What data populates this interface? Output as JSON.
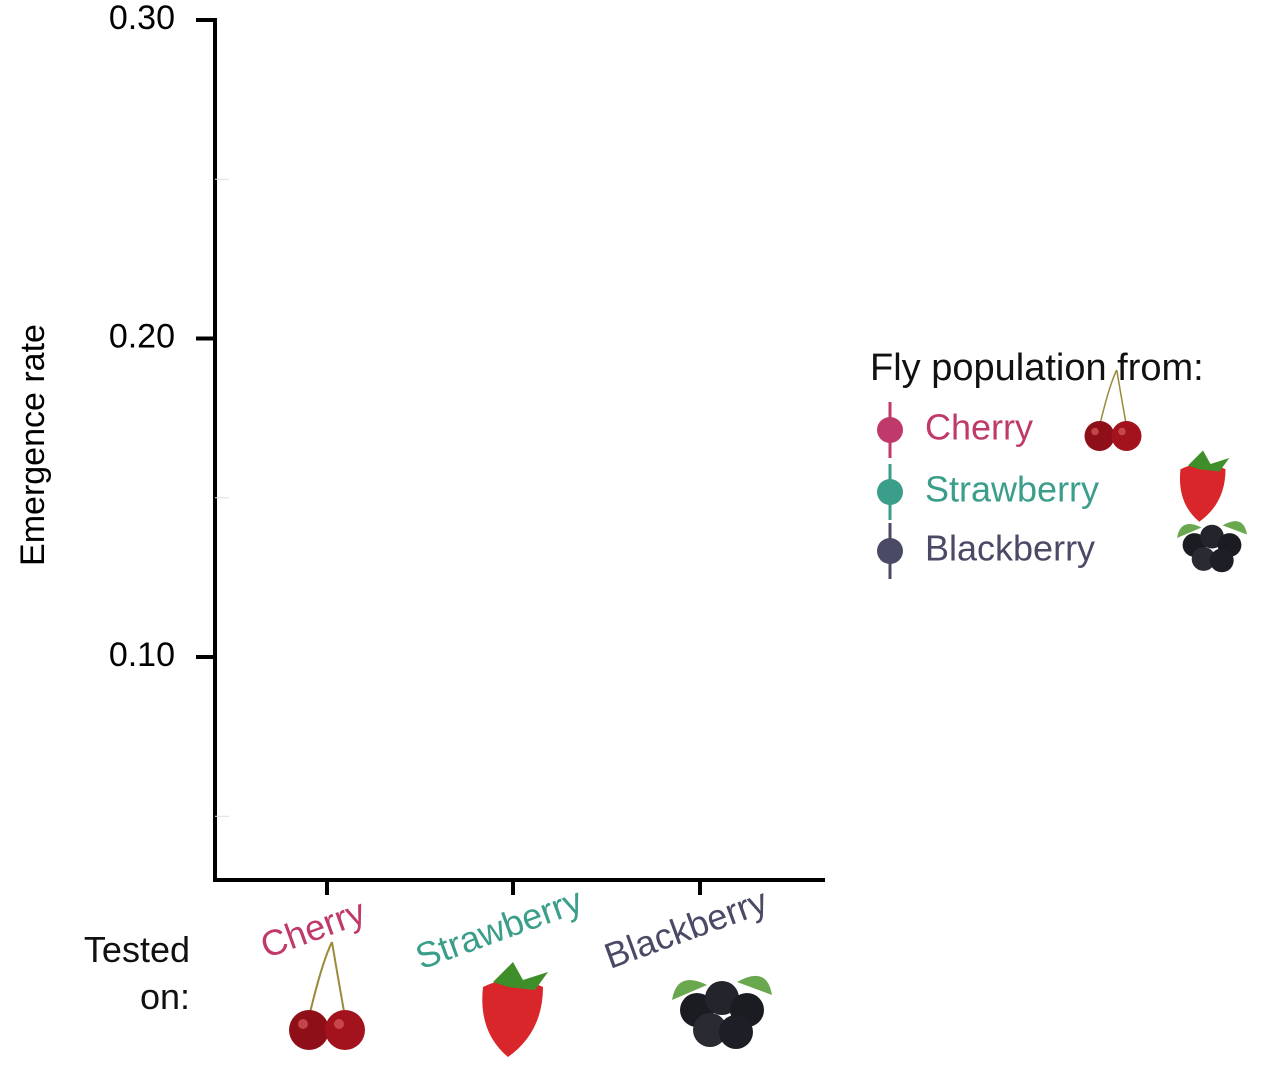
{
  "chart_data": {
    "type": "line",
    "y_label": "Emergence rate",
    "x_label": "Tested on:",
    "categories": [
      "Cherry",
      "Strawberry",
      "Blackberry"
    ],
    "category_colors": [
      "#c0396b",
      "#3a9e8a",
      "#4a4a66"
    ],
    "legend_title": "Fly population from:",
    "series": [
      {
        "name": "Cherry",
        "color": "#c0396b",
        "values": [
          null,
          null,
          null
        ]
      },
      {
        "name": "Strawberry",
        "color": "#3a9e8a",
        "values": [
          null,
          null,
          null
        ]
      },
      {
        "name": "Blackberry",
        "color": "#4a4a66",
        "values": [
          null,
          null,
          null
        ]
      }
    ],
    "ylim": [
      0.03,
      0.3
    ],
    "yticks": [
      {
        "value": 0.3,
        "label": "0.30"
      },
      {
        "value": 0.2,
        "label": "0.20"
      },
      {
        "value": 0.1,
        "label": "0.10"
      }
    ],
    "yminor": [
      0.25,
      0.15,
      0.05
    ],
    "legend": "right"
  }
}
